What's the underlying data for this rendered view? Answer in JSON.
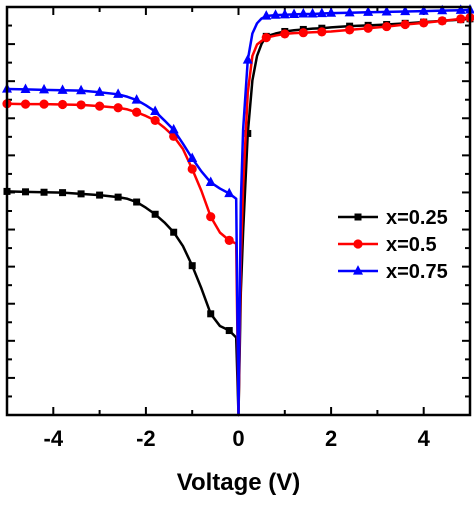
{
  "chart_data": {
    "type": "line",
    "title": "",
    "xlabel": "Voltage (V)",
    "ylabel": "",
    "xlim": [
      -5,
      5
    ],
    "ylim": [
      0,
      1
    ],
    "xticks": [
      -4,
      -2,
      0,
      2,
      4
    ],
    "xtick_labels": [
      "-4",
      "-2",
      "0",
      "2",
      "4"
    ],
    "grid": false,
    "legend_position": "right",
    "series": [
      {
        "name": "x=0.25",
        "color": "#000000",
        "marker": "square",
        "x": [
          -5.0,
          -4.6,
          -4.2,
          -3.8,
          -3.4,
          -3.0,
          -2.6,
          -2.4,
          -2.2,
          -2.0,
          -1.8,
          -1.6,
          -1.4,
          -1.2,
          -1.0,
          -0.8,
          -0.6,
          -0.4,
          -0.2,
          -0.05,
          0.0,
          0.05,
          0.1,
          0.2,
          0.3,
          0.4,
          0.5,
          0.6,
          0.8,
          1.0,
          1.2,
          1.4,
          1.6,
          1.8,
          2.0,
          2.4,
          2.8,
          3.2,
          3.6,
          4.0,
          4.4,
          4.8,
          5.0
        ],
        "values": [
          0.548,
          0.547,
          0.546,
          0.545,
          0.542,
          0.539,
          0.534,
          0.53,
          0.522,
          0.508,
          0.492,
          0.472,
          0.448,
          0.414,
          0.366,
          0.31,
          0.248,
          0.218,
          0.207,
          0.19,
          0.0,
          0.3,
          0.45,
          0.69,
          0.82,
          0.88,
          0.91,
          0.928,
          0.935,
          0.94,
          0.943,
          0.945,
          0.947,
          0.948,
          0.95,
          0.953,
          0.955,
          0.957,
          0.96,
          0.963,
          0.966,
          0.969,
          0.971
        ],
        "markers": [
          1,
          1,
          1,
          1,
          1,
          1,
          1,
          0,
          1,
          0,
          1,
          0,
          1,
          0,
          1,
          0,
          1,
          0,
          1,
          0,
          0,
          0,
          0,
          1,
          0,
          0,
          0,
          1,
          0,
          1,
          0,
          1,
          0,
          1,
          0,
          1,
          1,
          1,
          1,
          1,
          1,
          1,
          1
        ]
      },
      {
        "name": "x=0.5",
        "color": "#ff0000",
        "marker": "circle",
        "x": [
          -5.0,
          -4.6,
          -4.2,
          -3.8,
          -3.4,
          -3.0,
          -2.6,
          -2.4,
          -2.2,
          -2.0,
          -1.8,
          -1.6,
          -1.4,
          -1.2,
          -1.0,
          -0.8,
          -0.6,
          -0.4,
          -0.2,
          -0.05,
          0.0,
          0.05,
          0.1,
          0.2,
          0.3,
          0.4,
          0.5,
          0.6,
          0.8,
          1.0,
          1.2,
          1.4,
          1.6,
          1.8,
          2.0,
          2.4,
          2.8,
          3.2,
          3.6,
          4.0,
          4.4,
          4.8,
          5.0
        ],
        "values": [
          0.763,
          0.762,
          0.762,
          0.761,
          0.76,
          0.757,
          0.753,
          0.749,
          0.742,
          0.733,
          0.722,
          0.704,
          0.683,
          0.652,
          0.603,
          0.549,
          0.486,
          0.447,
          0.428,
          0.42,
          0.0,
          0.38,
          0.56,
          0.79,
          0.88,
          0.908,
          0.917,
          0.925,
          0.93,
          0.934,
          0.936,
          0.937,
          0.938,
          0.939,
          0.94,
          0.944,
          0.948,
          0.952,
          0.957,
          0.961,
          0.966,
          0.971,
          0.974
        ],
        "markers": [
          1,
          1,
          1,
          1,
          1,
          1,
          1,
          0,
          1,
          0,
          1,
          0,
          1,
          0,
          1,
          0,
          1,
          0,
          1,
          0,
          0,
          0,
          0,
          0,
          0,
          0,
          0,
          1,
          0,
          1,
          0,
          1,
          0,
          1,
          0,
          1,
          1,
          1,
          1,
          1,
          1,
          1,
          1
        ]
      },
      {
        "name": "x=0.75",
        "color": "#0000ff",
        "marker": "triangle",
        "x": [
          -5.0,
          -4.6,
          -4.2,
          -3.8,
          -3.4,
          -3.0,
          -2.6,
          -2.4,
          -2.2,
          -2.0,
          -1.8,
          -1.6,
          -1.4,
          -1.2,
          -1.0,
          -0.8,
          -0.6,
          -0.4,
          -0.2,
          -0.05,
          0.0,
          0.05,
          0.1,
          0.2,
          0.3,
          0.4,
          0.5,
          0.6,
          0.8,
          1.0,
          1.2,
          1.4,
          1.6,
          1.8,
          2.0,
          2.4,
          2.8,
          3.2,
          3.6,
          4.0,
          4.4,
          4.8,
          5.0
        ],
        "values": [
          0.799,
          0.798,
          0.797,
          0.796,
          0.795,
          0.791,
          0.786,
          0.78,
          0.772,
          0.759,
          0.744,
          0.722,
          0.699,
          0.665,
          0.629,
          0.597,
          0.57,
          0.555,
          0.543,
          0.53,
          0.0,
          0.52,
          0.7,
          0.87,
          0.935,
          0.96,
          0.972,
          0.978,
          0.98,
          0.981,
          0.982,
          0.983,
          0.983,
          0.984,
          0.985,
          0.986,
          0.987,
          0.988,
          0.989,
          0.99,
          0.991,
          0.992,
          0.993
        ],
        "markers": [
          1,
          1,
          1,
          1,
          1,
          1,
          1,
          0,
          1,
          0,
          1,
          0,
          1,
          0,
          1,
          0,
          1,
          0,
          1,
          0,
          0,
          0,
          0,
          1,
          0,
          0,
          0,
          1,
          1,
          1,
          1,
          1,
          1,
          1,
          1,
          1,
          1,
          1,
          1,
          1,
          1,
          1,
          1
        ]
      }
    ]
  }
}
